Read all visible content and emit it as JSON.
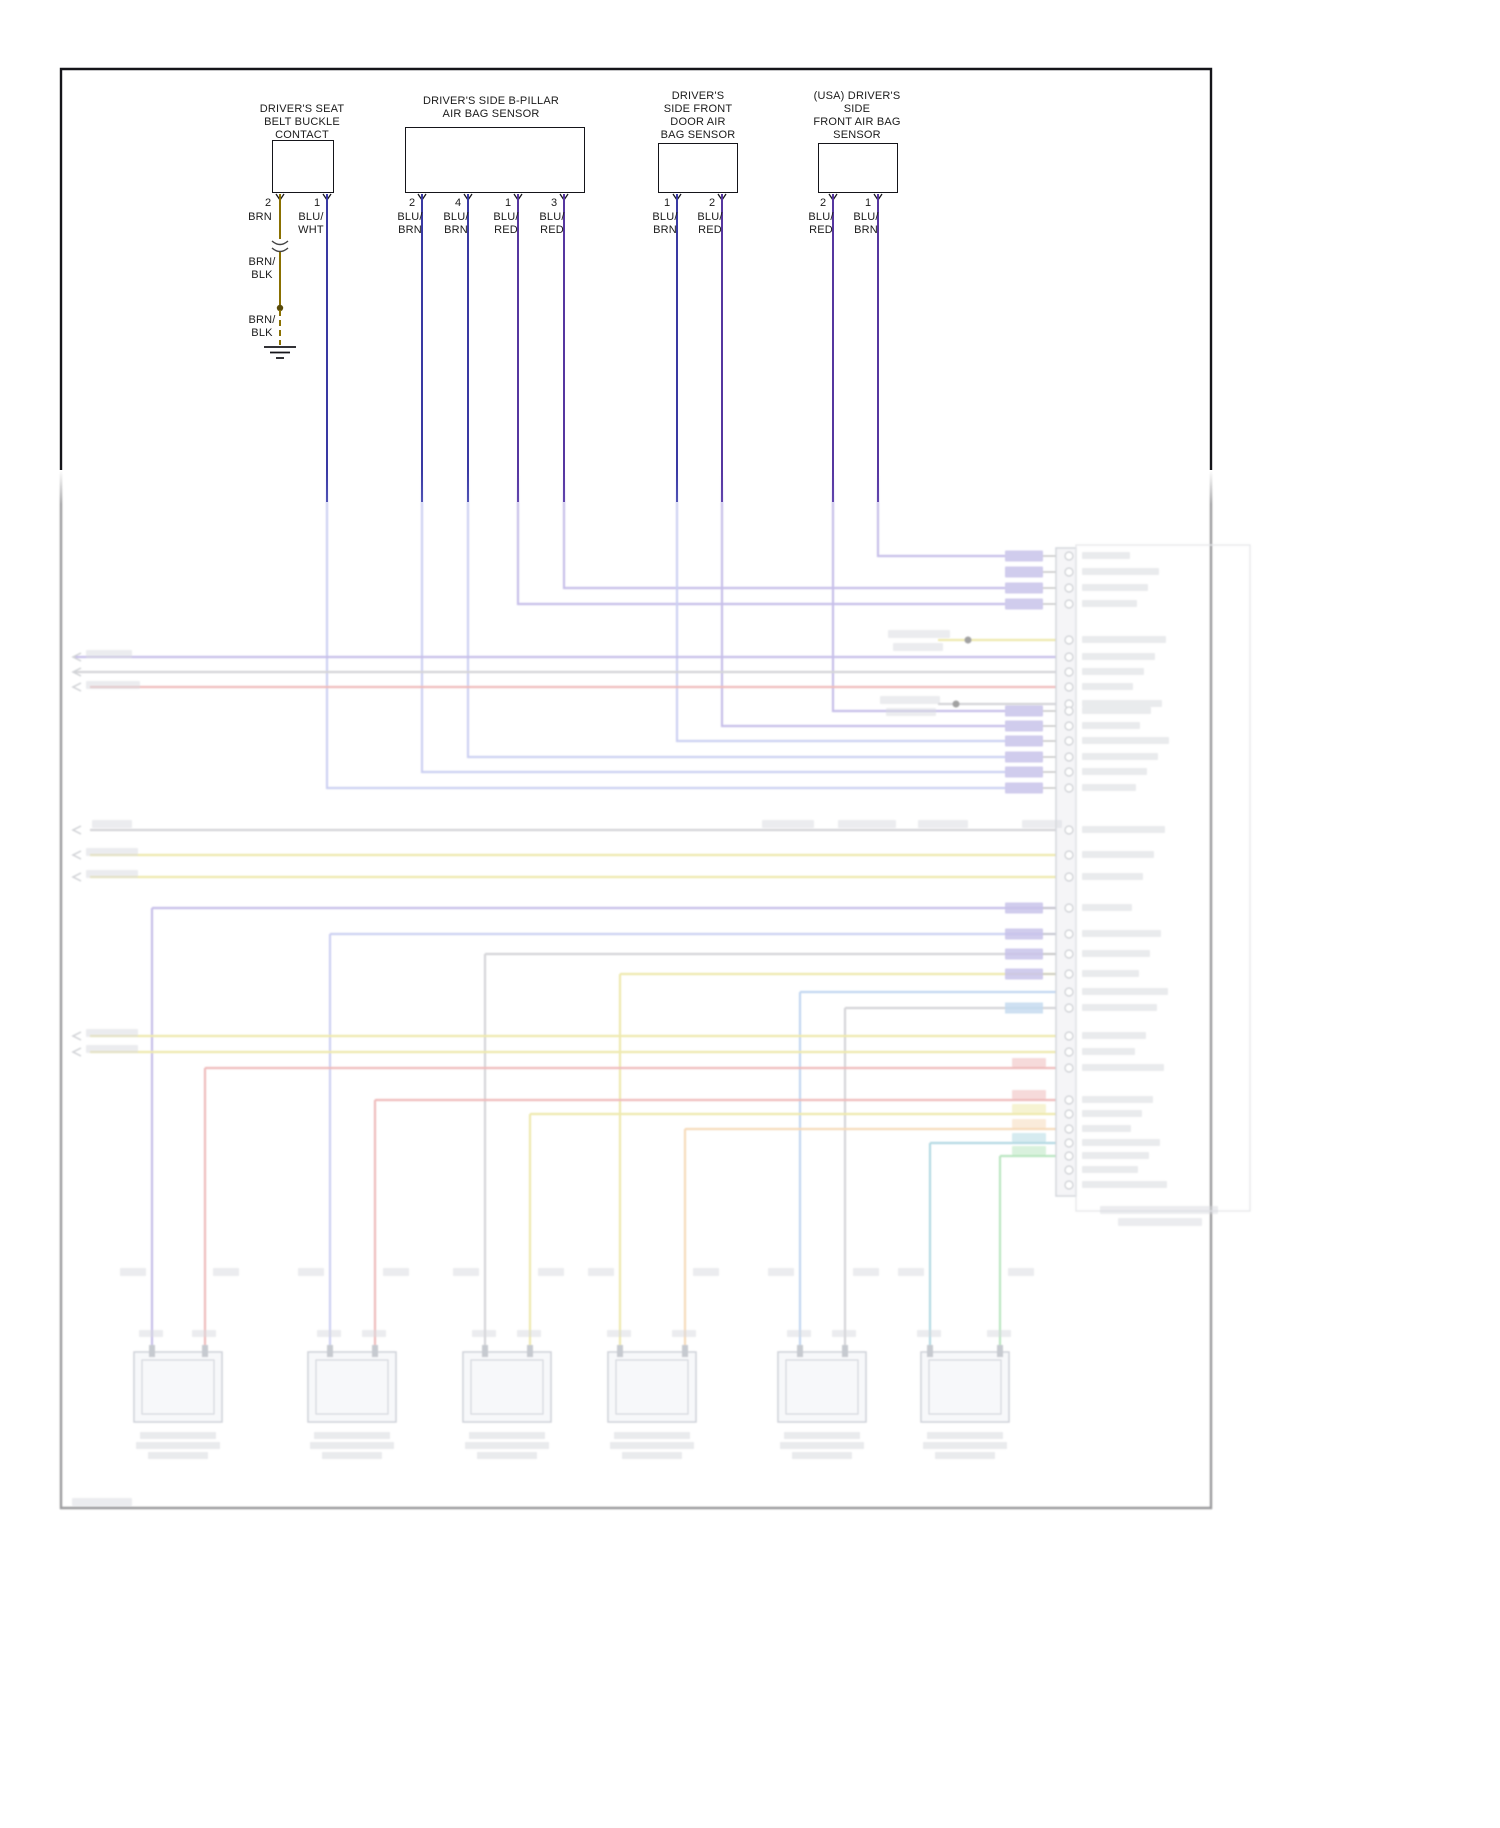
{
  "palette": {
    "ink": "#1a1a1a",
    "wire-brn": "#8a7000",
    "wire-blu": "#3939a3",
    "wire-vio": "#5636a0",
    "f-purple": "#7a68cc",
    "f-blue": "#8890e0",
    "f-blue2": "#6f9fdd",
    "f-red": "#d96060",
    "f-yellow": "#d8cc3f",
    "f-gray": "#9a9aa2",
    "f-teal": "#4fa8bd",
    "f-green": "#5cc46c",
    "f-orange": "#eaa95e",
    "f-block": "#7b6ecb",
    "f-blockblue": "#74a8da",
    "f-smudge": "#a3a7b3"
  },
  "components": {
    "buckle": {
      "title": "DRIVER'S SEAT\nBELT BUCKLE\nCONTACT",
      "pins": [
        "2",
        "1"
      ],
      "wire_labels": [
        "BRN",
        "BLU/\nWHT"
      ]
    },
    "bpillar": {
      "title": "DRIVER'S SIDE B-PILLAR\nAIR BAG SENSOR",
      "pins": [
        "2",
        "4",
        "1",
        "3"
      ],
      "wire_labels": [
        "BLU/\nBRN",
        "BLU/\nBRN",
        "BLU/\nRED",
        "BLU/\nRED"
      ]
    },
    "door": {
      "title": "DRIVER'S\nSIDE FRONT\nDOOR AIR\nBAG SENSOR",
      "pins": [
        "1",
        "2"
      ],
      "wire_labels": [
        "BLU/\nBRN",
        "BLU/\nRED"
      ]
    },
    "usa": {
      "title": "(USA) DRIVER'S\nSIDE\nFRONT AIR BAG\nSENSOR",
      "pins": [
        "2",
        "1"
      ],
      "wire_labels": [
        "BLU/\nRED",
        "BLU/\nBRN"
      ]
    }
  },
  "ground_branch": {
    "splice_label": "BRN/\nBLK",
    "ground_label": "BRN/\nBLK"
  }
}
